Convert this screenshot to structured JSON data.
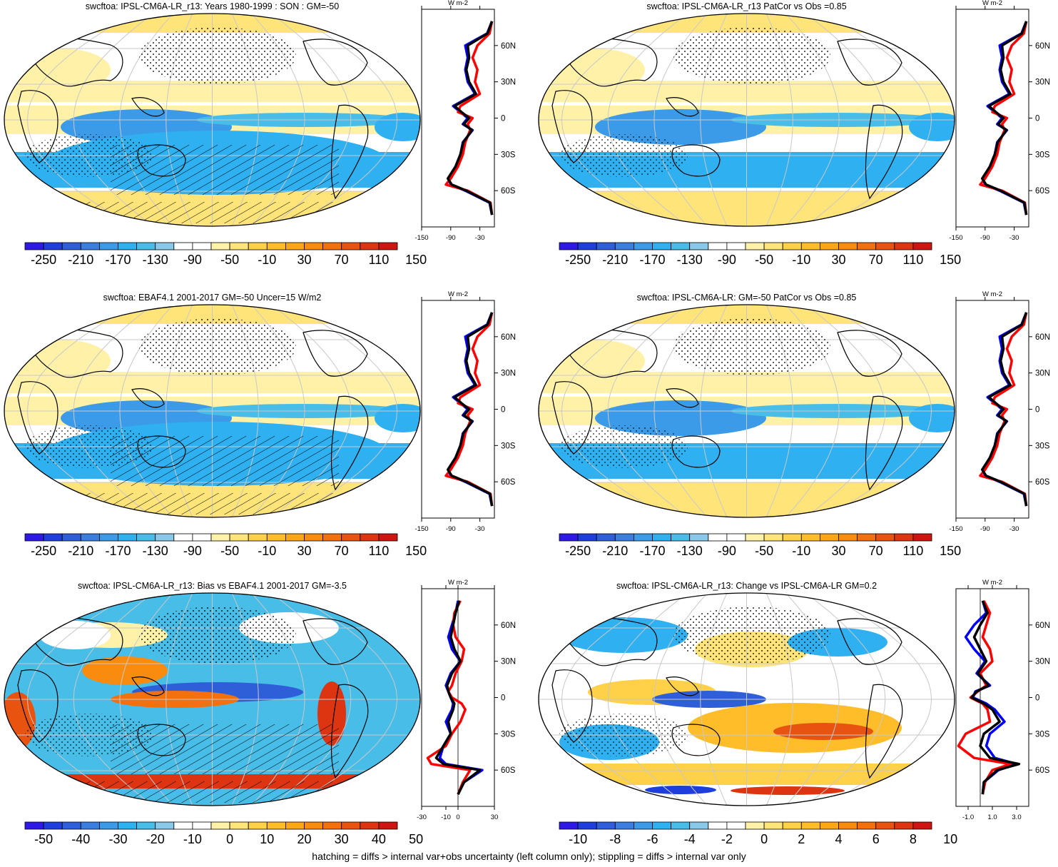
{
  "footer": "hatching = diffs > internal var+obs uncertainty (left column only); stippling = diffs > internal var only",
  "colorbars": {
    "field": {
      "labels": [
        "-250",
        "-210",
        "-170",
        "-130",
        "-90",
        "-50",
        "-10",
        "30",
        "70",
        "110",
        "150"
      ],
      "colors": [
        "#2e19e6",
        "#1f3fdc",
        "#2e5fd8",
        "#3c7ee0",
        "#3c9be8",
        "#2fb0f0",
        "#47bde8",
        "#8ac8ea",
        "#ffffff",
        "#ffffff",
        "#fff2a8",
        "#ffe47a",
        "#ffd149",
        "#ffbd2a",
        "#fea716",
        "#f98c0f",
        "#f2700e",
        "#e8540f",
        "#dd3512",
        "#cf1512"
      ]
    },
    "bias": {
      "labels": [
        "-50",
        "-40",
        "-30",
        "-20",
        "-10",
        "0",
        "10",
        "20",
        "30",
        "40",
        "50"
      ],
      "colors": [
        "#2e19e6",
        "#1f3fdc",
        "#2e5fd8",
        "#3c7ee0",
        "#3c9be8",
        "#2fb0f0",
        "#47bde8",
        "#8ac8ea",
        "#ffffff",
        "#ffffff",
        "#fff2a8",
        "#ffe47a",
        "#ffd149",
        "#ffbd2a",
        "#fea716",
        "#f98c0f",
        "#f2700e",
        "#e8540f",
        "#dd3512",
        "#cf1512"
      ]
    },
    "change": {
      "labels": [
        "-10",
        "-8",
        "-6",
        "-4",
        "-2",
        "0",
        "2",
        "4",
        "6",
        "8",
        "10"
      ],
      "colors": [
        "#2e19e6",
        "#1f3fdc",
        "#2e5fd8",
        "#3c7ee0",
        "#3c9be8",
        "#2fb0f0",
        "#47bde8",
        "#8ac8ea",
        "#ffffff",
        "#ffffff",
        "#fff2a8",
        "#ffe47a",
        "#ffd149",
        "#ffbd2a",
        "#fea716",
        "#f98c0f",
        "#f2700e",
        "#e8540f",
        "#dd3512",
        "#cf1512"
      ]
    }
  },
  "chart_data": [
    {
      "type": "heatmap",
      "projection": "Robinson",
      "title": "swcftoa: IPSL-CM6A-LR_r13: Years 1980-1999 : SON : GM=-50",
      "colorbar": "field",
      "zonal_profile": {
        "unit": "W m-2",
        "xticks": [
          "-150",
          "-90",
          "-30"
        ],
        "xlim": [
          -150,
          0
        ],
        "yticks": [
          "60N",
          "30N",
          "0",
          "30S",
          "60S"
        ],
        "lat": [
          80,
          70,
          60,
          50,
          40,
          30,
          20,
          10,
          5,
          0,
          -5,
          -10,
          -20,
          -30,
          -40,
          -50,
          -55,
          -60,
          -70,
          -80
        ],
        "series": [
          {
            "color": "#0000ff",
            "values": [
              -5,
              -15,
              -60,
              -55,
              -60,
              -55,
              -40,
              -85,
              -70,
              -55,
              -65,
              -45,
              -65,
              -70,
              -80,
              -95,
              -90,
              -60,
              -10,
              -5
            ]
          },
          {
            "color": "#ff0000",
            "values": [
              -5,
              -10,
              -35,
              -45,
              -35,
              -40,
              -30,
              -70,
              -75,
              -45,
              -55,
              -50,
              -60,
              -65,
              -75,
              -90,
              -100,
              -55,
              -8,
              -5
            ]
          },
          {
            "color": "#000000",
            "values": [
              -5,
              -14,
              -55,
              -52,
              -58,
              -52,
              -38,
              -82,
              -68,
              -52,
              -63,
              -46,
              -64,
              -70,
              -80,
              -96,
              -88,
              -58,
              -9,
              -5
            ]
          }
        ]
      }
    },
    {
      "type": "heatmap",
      "projection": "Robinson",
      "title": "swcftoa: IPSL-CM6A-LR_r13 PatCor vs Obs =0.85",
      "colorbar": "field",
      "zonal_profile": {
        "unit": "W m-2",
        "xticks": [
          "-150",
          "-90",
          "-30"
        ],
        "xlim": [
          -150,
          0
        ],
        "yticks": [
          "60N",
          "30N",
          "0",
          "30S",
          "60S"
        ],
        "lat": [
          80,
          70,
          60,
          50,
          40,
          30,
          20,
          10,
          5,
          0,
          -5,
          -10,
          -20,
          -30,
          -40,
          -50,
          -55,
          -60,
          -70,
          -80
        ],
        "series": [
          {
            "color": "#0000ff",
            "values": [
              -5,
              -15,
              -60,
              -55,
              -60,
              -55,
              -40,
              -85,
              -70,
              -55,
              -65,
              -45,
              -65,
              -70,
              -80,
              -95,
              -90,
              -60,
              -10,
              -5
            ]
          },
          {
            "color": "#ff0000",
            "values": [
              -5,
              -10,
              -35,
              -45,
              -35,
              -40,
              -30,
              -70,
              -75,
              -45,
              -55,
              -50,
              -60,
              -65,
              -75,
              -90,
              -100,
              -55,
              -8,
              -5
            ]
          },
          {
            "color": "#000000",
            "values": [
              -5,
              -14,
              -55,
              -52,
              -58,
              -52,
              -38,
              -82,
              -68,
              -52,
              -63,
              -46,
              -64,
              -70,
              -80,
              -96,
              -88,
              -58,
              -9,
              -5
            ]
          }
        ]
      }
    },
    {
      "type": "heatmap",
      "projection": "Robinson",
      "title": "swcftoa: EBAF4.1 2001-2017 GM=-50 Uncer=15 W/m2",
      "colorbar": "field",
      "zonal_profile": {
        "unit": "W m-2",
        "xticks": [
          "-150",
          "-90",
          "-30"
        ],
        "xlim": [
          -150,
          0
        ],
        "yticks": [
          "60N",
          "30N",
          "0",
          "30S",
          "60S"
        ],
        "lat": [
          80,
          70,
          60,
          50,
          40,
          30,
          20,
          10,
          5,
          0,
          -5,
          -10,
          -20,
          -30,
          -40,
          -50,
          -55,
          -60,
          -70,
          -80
        ],
        "series": [
          {
            "color": "#0000ff",
            "values": [
              -5,
              -15,
              -60,
              -55,
              -60,
              -55,
              -40,
              -85,
              -70,
              -55,
              -65,
              -45,
              -65,
              -70,
              -80,
              -95,
              -90,
              -60,
              -10,
              -5
            ]
          },
          {
            "color": "#ff0000",
            "values": [
              -5,
              -10,
              -35,
              -45,
              -35,
              -40,
              -30,
              -70,
              -75,
              -45,
              -55,
              -50,
              -60,
              -65,
              -75,
              -90,
              -100,
              -55,
              -8,
              -5
            ]
          },
          {
            "color": "#000000",
            "values": [
              -5,
              -14,
              -55,
              -52,
              -58,
              -52,
              -38,
              -82,
              -68,
              -52,
              -63,
              -46,
              -64,
              -70,
              -80,
              -96,
              -88,
              -58,
              -9,
              -5
            ]
          }
        ]
      }
    },
    {
      "type": "heatmap",
      "projection": "Robinson",
      "title": "swcftoa: IPSL-CM6A-LR: GM=-50 PatCor vs Obs =0.85",
      "colorbar": "field",
      "zonal_profile": {
        "unit": "W m-2",
        "xticks": [
          "-150",
          "-90",
          "-30"
        ],
        "xlim": [
          -150,
          0
        ],
        "yticks": [
          "60N",
          "30N",
          "0",
          "30S",
          "60S"
        ],
        "lat": [
          80,
          70,
          60,
          50,
          40,
          30,
          20,
          10,
          5,
          0,
          -5,
          -10,
          -20,
          -30,
          -40,
          -50,
          -55,
          -60,
          -70,
          -80
        ],
        "series": [
          {
            "color": "#0000ff",
            "values": [
              -5,
              -15,
              -60,
              -55,
              -60,
              -55,
              -40,
              -85,
              -70,
              -55,
              -65,
              -45,
              -65,
              -70,
              -80,
              -95,
              -90,
              -60,
              -10,
              -5
            ]
          },
          {
            "color": "#ff0000",
            "values": [
              -5,
              -10,
              -35,
              -45,
              -35,
              -40,
              -30,
              -70,
              -75,
              -45,
              -55,
              -50,
              -60,
              -65,
              -75,
              -90,
              -100,
              -55,
              -8,
              -5
            ]
          },
          {
            "color": "#000000",
            "values": [
              -5,
              -14,
              -55,
              -52,
              -58,
              -52,
              -38,
              -82,
              -68,
              -52,
              -63,
              -46,
              -64,
              -70,
              -80,
              -96,
              -88,
              -58,
              -9,
              -5
            ]
          }
        ]
      }
    },
    {
      "type": "heatmap",
      "projection": "Robinson",
      "title": "swcftoa: IPSL-CM6A-LR_r13: Bias vs EBAF4.1 2001-2017  GM=-3.5",
      "colorbar": "bias",
      "zonal_profile": {
        "unit": "W m-2",
        "xticks": [
          "-30",
          "-10",
          "0",
          "30"
        ],
        "xlim": [
          -30,
          30
        ],
        "yticks": [
          "60N",
          "30N",
          "0",
          "30S",
          "60S"
        ],
        "lat": [
          80,
          70,
          60,
          50,
          40,
          30,
          20,
          10,
          5,
          0,
          -5,
          -10,
          -20,
          -30,
          -40,
          -50,
          -55,
          -60,
          -70,
          -80
        ],
        "series": [
          {
            "color": "#0000ff",
            "values": [
              0,
              -2,
              -5,
              -8,
              -5,
              2,
              -6,
              -10,
              -8,
              -6,
              -4,
              -5,
              -10,
              -6,
              -12,
              -15,
              -10,
              20,
              5,
              0
            ]
          },
          {
            "color": "#ff0000",
            "values": [
              2,
              -3,
              -4,
              -2,
              5,
              3,
              -2,
              -5,
              -8,
              -5,
              3,
              6,
              2,
              -5,
              -10,
              -25,
              -22,
              10,
              4,
              0
            ]
          },
          {
            "color": "#000000",
            "values": [
              1,
              -2,
              -4,
              -6,
              -3,
              2,
              -5,
              -9,
              -8,
              -6,
              -3,
              -4,
              -8,
              -6,
              -12,
              -18,
              -12,
              18,
              5,
              0
            ]
          }
        ]
      }
    },
    {
      "type": "heatmap",
      "projection": "Robinson",
      "title": "swcftoa: IPSL-CM6A-LR_r13: Change vs IPSL-CM6A-LR GM=0.2",
      "colorbar": "change",
      "zonal_profile": {
        "unit": "W m-2",
        "xticks": [
          "-1.0",
          "1.0",
          "3.0"
        ],
        "xlim": [
          -2,
          4
        ],
        "yticks": [
          "60N",
          "30N",
          "0",
          "30S",
          "60S"
        ],
        "lat": [
          80,
          70,
          60,
          50,
          40,
          30,
          20,
          10,
          5,
          0,
          -5,
          -10,
          -20,
          -30,
          -40,
          -50,
          -55,
          -60,
          -70,
          -80
        ],
        "series": [
          {
            "color": "#0000ff",
            "values": [
              0.2,
              0.5,
              -0.5,
              -1.2,
              -0.5,
              0.4,
              -0.3,
              0.8,
              -0.4,
              -0.6,
              0.5,
              1.2,
              2.0,
              0.8,
              0.5,
              1.2,
              3.0,
              1.5,
              0.3,
              0.2
            ]
          },
          {
            "color": "#ff0000",
            "values": [
              0.3,
              0.8,
              0.5,
              0.2,
              0.8,
              1.0,
              0.0,
              0.5,
              -0.2,
              -0.8,
              0.2,
              0.6,
              0.8,
              -1.2,
              -1.8,
              -0.5,
              2.5,
              1.0,
              0.4,
              0.2
            ]
          },
          {
            "color": "#000000",
            "values": [
              0.2,
              0.6,
              0.0,
              -0.5,
              0.0,
              0.5,
              -0.2,
              0.7,
              -0.3,
              -0.7,
              0.3,
              1.0,
              1.6,
              0.3,
              0.0,
              0.8,
              3.2,
              1.4,
              0.3,
              0.2
            ]
          }
        ]
      }
    }
  ]
}
